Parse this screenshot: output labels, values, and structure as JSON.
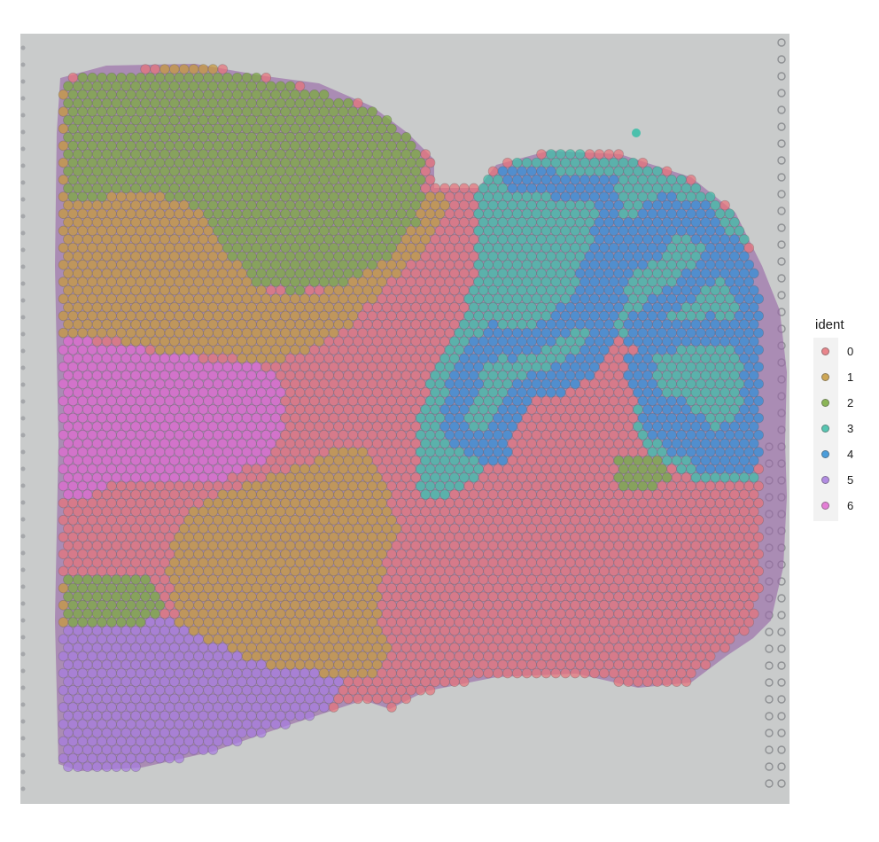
{
  "legend": {
    "title": "ident",
    "items": [
      {
        "label": "0",
        "color": "#e8737a"
      },
      {
        "label": "1",
        "color": "#c89a3a"
      },
      {
        "label": "2",
        "color": "#7aab3b"
      },
      {
        "label": "3",
        "color": "#3dbfa8"
      },
      {
        "label": "4",
        "color": "#2f8fd8"
      },
      {
        "label": "5",
        "color": "#a77be0"
      },
      {
        "label": "6",
        "color": "#e26ad2"
      }
    ]
  },
  "colors": {
    "slide_background": "#c9cbcb",
    "tissue_stain": "#9a6aa8",
    "spot_outline": "#5a5a5a"
  }
}
